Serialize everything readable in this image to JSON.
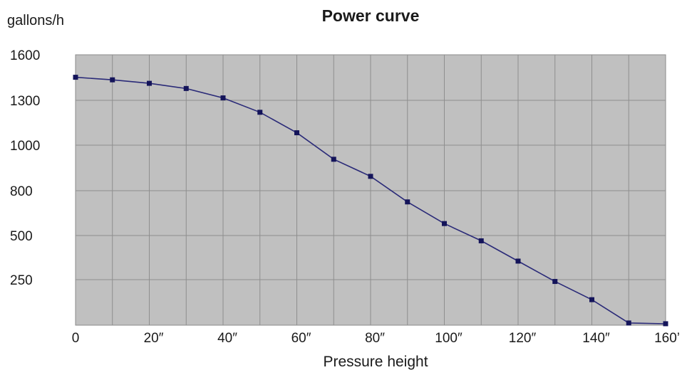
{
  "chart_data": {
    "type": "line",
    "title": "Power curve",
    "ylabel": "gallons/h",
    "xlabel": "Pressure height",
    "x_tick_labels": [
      "0",
      "20″",
      "40″",
      "60″",
      "80″",
      "100″",
      "120″",
      "140″",
      "160’"
    ],
    "y_tick_labels": [
      "1600",
      "1300",
      "1000",
      "800",
      "500",
      "250"
    ],
    "x": [
      0,
      10,
      20,
      30,
      40,
      50,
      60,
      70,
      80,
      90,
      100,
      110,
      120,
      130,
      140,
      150,
      160
    ],
    "y": [
      1452,
      1435,
      1412,
      1378,
      1316,
      1220,
      1083,
      938,
      863,
      725,
      580,
      470,
      355,
      240,
      140,
      12,
      8
    ],
    "xlim": [
      0,
      160
    ],
    "ylim": [
      0,
      1600
    ],
    "grid": true,
    "legend": "none",
    "colors": {
      "plot_bg": "#c0c0c0",
      "grid": "#8e8e8e",
      "line": "#2a2a78",
      "marker": "#14145a",
      "axis": "#8a8a8a"
    }
  }
}
